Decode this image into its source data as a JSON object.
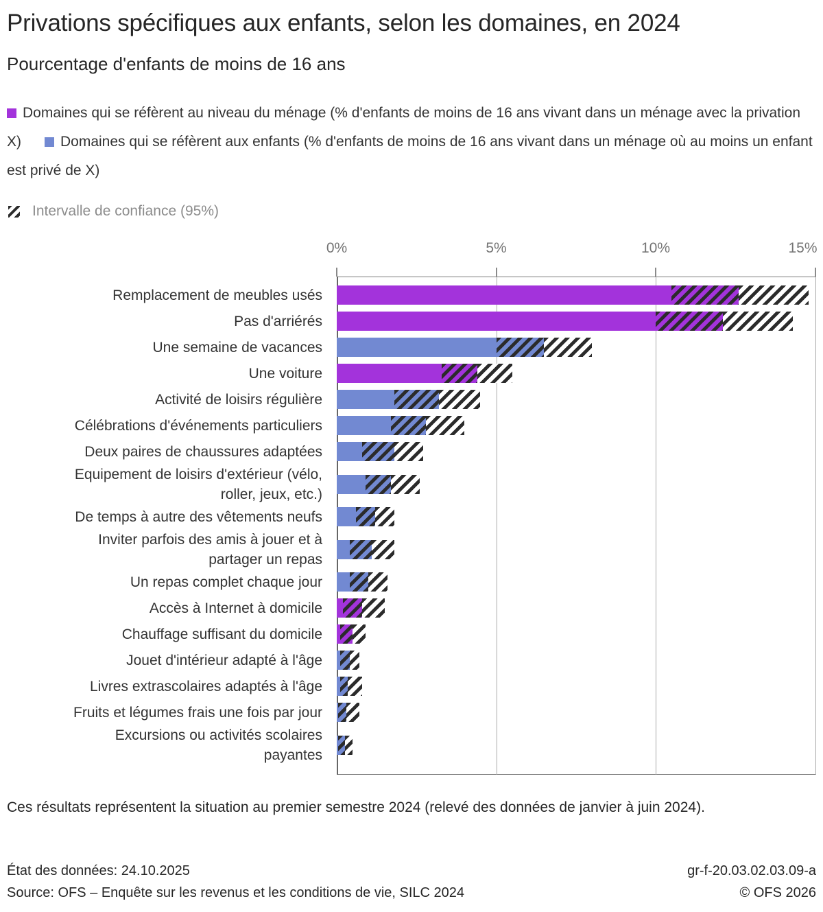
{
  "title": "Privations spécifiques aux enfants, selon les domaines, en 2024",
  "subtitle": "Pourcentage d'enfants de moins de 16 ans",
  "colors": {
    "household": "#a333db",
    "children": "#7289d2",
    "hatch": "#2b2b2b",
    "gridline": "#a8a8a8",
    "axis_text": "#757575"
  },
  "legend": {
    "household_label": "Domaines qui se réfèrent au niveau du ménage (% d'enfants de moins de 16 ans vivant dans un ménage avec la privation X)",
    "children_label": "Domaines qui se réfèrent aux enfants (% d'enfants de moins de 16 ans vivant dans un ménage où au moins un enfant est privé de X)",
    "ci_label": "Intervalle de confiance (95%)"
  },
  "chart_data": {
    "type": "bar",
    "orientation": "horizontal",
    "unit": "percent",
    "xlim": [
      0,
      15
    ],
    "x_ticks": [
      "0%",
      "5%",
      "10%",
      "15%"
    ],
    "x_tick_values": [
      0,
      5,
      10,
      15
    ],
    "grid": "vertical",
    "legend_position": "top",
    "series_note": "value = point estimate; ci_low/ci_high = 95% confidence interval bounds shown as hatched area",
    "rows": [
      {
        "label": "Remplacement de meubles usés",
        "label_lines": [
          "Remplacement de meubles usés"
        ],
        "group": "household",
        "value": 12.6,
        "ci_low": 10.5,
        "ci_high": 14.8
      },
      {
        "label": "Pas d'arriérés",
        "label_lines": [
          "Pas d'arriérés"
        ],
        "group": "household",
        "value": 12.1,
        "ci_low": 10.0,
        "ci_high": 14.3
      },
      {
        "label": "Une semaine de vacances",
        "label_lines": [
          "Une semaine de vacances"
        ],
        "group": "children",
        "value": 6.5,
        "ci_low": 5.0,
        "ci_high": 8.0
      },
      {
        "label": "Une voiture",
        "label_lines": [
          "Une voiture"
        ],
        "group": "household",
        "value": 4.4,
        "ci_low": 3.3,
        "ci_high": 5.5
      },
      {
        "label": "Activité de loisirs régulière",
        "label_lines": [
          "Activité de loisirs régulière"
        ],
        "group": "children",
        "value": 3.2,
        "ci_low": 1.8,
        "ci_high": 4.5
      },
      {
        "label": "Célébrations d'événements particuliers",
        "label_lines": [
          "Célébrations d'événements particuliers"
        ],
        "group": "children",
        "value": 2.8,
        "ci_low": 1.7,
        "ci_high": 4.0
      },
      {
        "label": "Deux paires de chaussures adaptées",
        "label_lines": [
          "Deux paires de chaussures adaptées"
        ],
        "group": "children",
        "value": 1.8,
        "ci_low": 0.8,
        "ci_high": 2.7
      },
      {
        "label": "Equipement de loisirs d'extérieur (vélo, roller, jeux, etc.)",
        "label_lines": [
          "Equipement de loisirs d'extérieur (vélo,",
          "roller, jeux, etc.)"
        ],
        "group": "children",
        "value": 1.7,
        "ci_low": 0.9,
        "ci_high": 2.6
      },
      {
        "label": "De temps à autre des vêtements neufs",
        "label_lines": [
          "De temps à autre des vêtements neufs"
        ],
        "group": "children",
        "value": 1.2,
        "ci_low": 0.6,
        "ci_high": 1.8
      },
      {
        "label": "Inviter parfois des amis à jouer et à partager un repas",
        "label_lines": [
          "Inviter parfois des amis à jouer et à",
          "partager un repas"
        ],
        "group": "children",
        "value": 1.1,
        "ci_low": 0.4,
        "ci_high": 1.8
      },
      {
        "label": "Un repas complet chaque jour",
        "label_lines": [
          "Un repas complet chaque jour"
        ],
        "group": "children",
        "value": 1.0,
        "ci_low": 0.4,
        "ci_high": 1.6
      },
      {
        "label": "Accès à Internet à domicile",
        "label_lines": [
          "Accès à Internet à domicile"
        ],
        "group": "household",
        "value": 0.8,
        "ci_low": 0.2,
        "ci_high": 1.5
      },
      {
        "label": "Chauffage suffisant du domicile",
        "label_lines": [
          "Chauffage suffisant du domicile"
        ],
        "group": "household",
        "value": 0.5,
        "ci_low": 0.1,
        "ci_high": 0.9
      },
      {
        "label": "Jouet d'intérieur adapté à l'âge",
        "label_lines": [
          "Jouet d'intérieur adapté à l'âge"
        ],
        "group": "children",
        "value": 0.4,
        "ci_low": 0.1,
        "ci_high": 0.7
      },
      {
        "label": "Livres extrascolaires adaptés à l'âge",
        "label_lines": [
          "Livres extrascolaires adaptés à l'âge"
        ],
        "group": "children",
        "value": 0.35,
        "ci_low": 0.1,
        "ci_high": 0.8
      },
      {
        "label": "Fruits et légumes frais une fois par jour",
        "label_lines": [
          "Fruits et légumes frais une fois par jour"
        ],
        "group": "children",
        "value": 0.3,
        "ci_low": 0.05,
        "ci_high": 0.7
      },
      {
        "label": "Excursions ou activités scolaires payantes",
        "label_lines": [
          "Excursions ou activités scolaires",
          "payantes"
        ],
        "group": "children",
        "value": 0.25,
        "ci_low": 0.05,
        "ci_high": 0.5
      }
    ]
  },
  "footnote": "Ces résultats représentent la situation au premier semestre 2024 (relevé des données de janvier à juin 2024).",
  "meta": {
    "data_state": "État des données: 24.10.2025",
    "source": "Source: OFS – Enquête sur les revenus et les conditions de vie, SILC 2024",
    "reference": "gr-f-20.03.02.03.09-a",
    "copyright": "© OFS 2026"
  }
}
